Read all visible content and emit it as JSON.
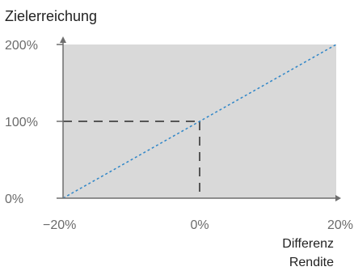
{
  "chart_data": {
    "type": "line",
    "title": "Zielerreichung",
    "xlabel": [
      "Differenz",
      "Rendite"
    ],
    "ylabel": "",
    "xlim": [
      -20,
      20
    ],
    "ylim": [
      0,
      200
    ],
    "x_unit": "%",
    "y_unit": "%",
    "x_ticks": [
      -20,
      0,
      20
    ],
    "x_tick_labels": [
      "−20%",
      "0%",
      "20%"
    ],
    "y_ticks": [
      0,
      100,
      200
    ],
    "y_tick_labels": [
      "0%",
      "100%",
      "200%"
    ],
    "series": [
      {
        "x": [
          -20,
          20
        ],
        "y": [
          0,
          200
        ],
        "style": "dotted",
        "color": "#2f86c8"
      }
    ],
    "reference": {
      "x": 0,
      "y": 100,
      "style": "dashed",
      "color": "#555555"
    },
    "plot_background": "#d9d9d9",
    "grid": false
  }
}
